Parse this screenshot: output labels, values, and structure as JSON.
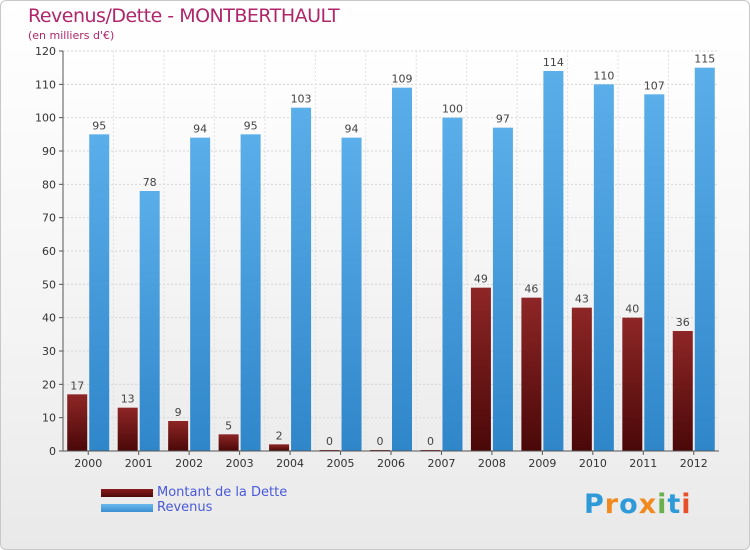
{
  "chart_data": {
    "type": "bar",
    "title": "Revenus/Dette - MONTBERTHAULT",
    "subtitle": "(en milliers d'€)",
    "categories": [
      "2000",
      "2001",
      "2002",
      "2003",
      "2004",
      "2005",
      "2006",
      "2007",
      "2008",
      "2009",
      "2010",
      "2011",
      "2012"
    ],
    "series": [
      {
        "name": "Montant de la Dette",
        "color": "#7a1a1a",
        "values": [
          17,
          13,
          9,
          5,
          2,
          0,
          0,
          0,
          49,
          46,
          43,
          40,
          36
        ]
      },
      {
        "name": "Revenus",
        "color": "#4ea5e6",
        "values": [
          95,
          78,
          94,
          95,
          103,
          94,
          109,
          100,
          97,
          114,
          110,
          107,
          115
        ]
      }
    ],
    "ylim": [
      0,
      120
    ],
    "yticks": [
      0,
      10,
      20,
      30,
      40,
      50,
      60,
      70,
      80,
      90,
      100,
      110,
      120
    ],
    "grid": true,
    "legend_position": "bottom-left"
  },
  "logo": {
    "letters": [
      "P",
      "r",
      "o",
      "x",
      "i",
      "t",
      "i"
    ],
    "colors": [
      "#2f9ad8",
      "#f08a1e",
      "#2f9ad8",
      "#f08a1e",
      "#6ab04c",
      "#2f9ad8",
      "#e8502a"
    ]
  }
}
